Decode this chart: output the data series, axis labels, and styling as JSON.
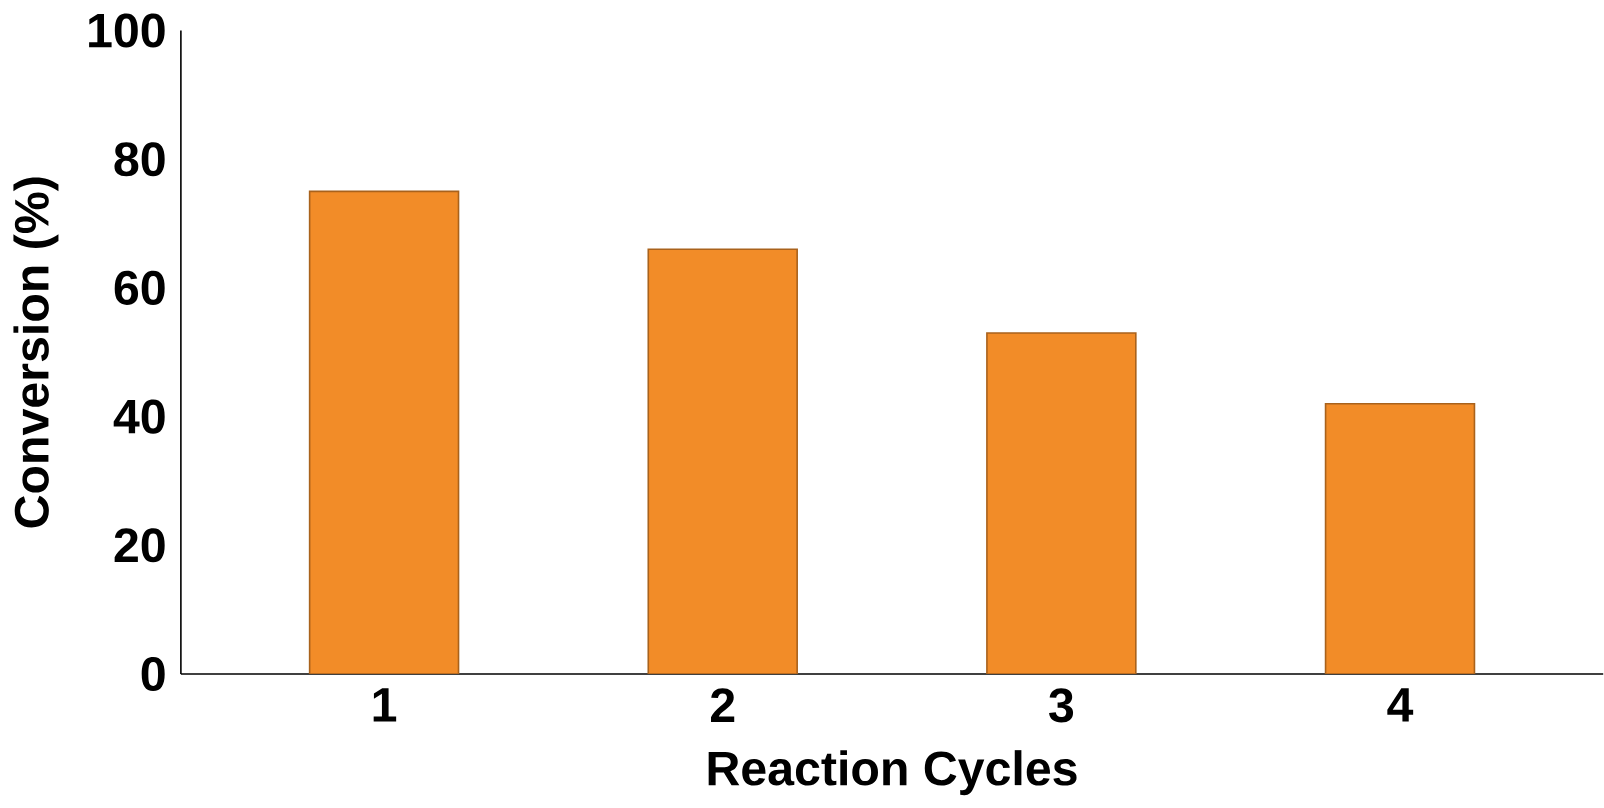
{
  "chart_data": {
    "type": "bar",
    "xlabel": "Reaction Cycles",
    "ylabel": "Conversion (%)",
    "categories": [
      "1",
      "2",
      "3",
      "4"
    ],
    "values": [
      75,
      66,
      53,
      42
    ],
    "color": "#f28c28",
    "ylim": [
      0,
      100
    ],
    "yticks": [
      0,
      20,
      40,
      60,
      80,
      100
    ],
    "grid": false
  }
}
